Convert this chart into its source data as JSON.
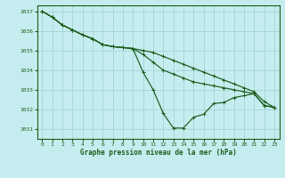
{
  "title": "Graphe pression niveau de la mer (hPa)",
  "background_color": "#c5edef",
  "grid_color": "#a8d8d8",
  "line_color": "#1a5c1a",
  "xlim": [
    -0.5,
    23.5
  ],
  "ylim": [
    1030.5,
    1037.3
  ],
  "yticks": [
    1031,
    1032,
    1033,
    1034,
    1035,
    1036,
    1037
  ],
  "xticks": [
    0,
    1,
    2,
    3,
    4,
    5,
    6,
    7,
    8,
    9,
    10,
    11,
    12,
    13,
    14,
    15,
    16,
    17,
    18,
    19,
    20,
    21,
    22,
    23
  ],
  "series1": [
    1037.0,
    1036.7,
    1036.3,
    1036.05,
    1035.8,
    1035.6,
    1035.3,
    1035.2,
    1035.15,
    1035.1,
    1033.9,
    1033.0,
    1031.8,
    1031.05,
    1031.05,
    1031.6,
    1031.75,
    1032.3,
    1032.35,
    1032.6,
    1032.7,
    1032.8,
    1032.2,
    1032.1
  ],
  "series2": [
    1037.0,
    1036.7,
    1036.3,
    1036.05,
    1035.8,
    1035.6,
    1035.3,
    1035.2,
    1035.15,
    1035.1,
    1034.8,
    1034.4,
    1034.0,
    1033.8,
    1033.6,
    1033.4,
    1033.3,
    1033.2,
    1033.1,
    1033.0,
    1032.9,
    1032.8,
    1032.2,
    1032.1
  ],
  "series3": [
    1037.0,
    1036.7,
    1036.3,
    1036.05,
    1035.8,
    1035.6,
    1035.3,
    1035.2,
    1035.15,
    1035.1,
    1035.0,
    1034.9,
    1034.7,
    1034.5,
    1034.3,
    1034.1,
    1033.9,
    1033.7,
    1033.5,
    1033.3,
    1033.1,
    1032.9,
    1032.4,
    1032.1
  ]
}
